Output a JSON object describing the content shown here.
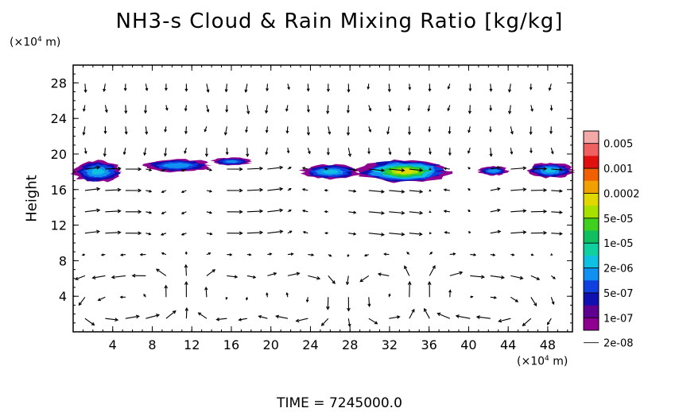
{
  "title": "NH3-s Cloud & Rain Mixing Ratio [kg/kg]",
  "y_unit": "(×10",
  "y_unit_exp": "4",
  "y_unit_tail": " m)",
  "x_unit": "(×10",
  "x_unit_exp": "4",
  "x_unit_tail": " m)",
  "ylabel": "Height",
  "time_label": "TIME  =  7245000.0",
  "chart_data": {
    "type": "heatmap",
    "title": "NH3-s Cloud & Rain Mixing Ratio [kg/kg]",
    "ylabel": "Height",
    "xlim": [
      0,
      50.5
    ],
    "ylim": [
      0,
      30
    ],
    "xticks": [
      4,
      8,
      12,
      16,
      20,
      24,
      28,
      32,
      36,
      40,
      44,
      48
    ],
    "yticks": [
      4,
      8,
      12,
      16,
      20,
      24,
      28
    ],
    "colorbar": {
      "labels": [
        "0.005",
        "0.001",
        "0.0002",
        "5e-05",
        "1e-05",
        "2e-06",
        "5e-07",
        "1e-07",
        "2e-08"
      ],
      "colors": [
        "#f5a8a8",
        "#f06060",
        "#e01010",
        "#f06000",
        "#f0a000",
        "#e0d800",
        "#a8e000",
        "#40d020",
        "#10c060",
        "#10d0a0",
        "#10c0e0",
        "#1090f0",
        "#1040e0",
        "#1010b0",
        "#600090",
        "#900090"
      ]
    },
    "cloud_patches": [
      {
        "x": [
          0,
          5
        ],
        "y": [
          16.8,
          19.2
        ],
        "level": 0.35
      },
      {
        "x": [
          7,
          14
        ],
        "y": [
          18.0,
          19.4
        ],
        "level": 0.3
      },
      {
        "x": [
          14,
          18
        ],
        "y": [
          18.7,
          19.6
        ],
        "level": 0.25
      },
      {
        "x": [
          23,
          29
        ],
        "y": [
          17.2,
          18.8
        ],
        "level": 0.35
      },
      {
        "x": [
          29,
          38
        ],
        "y": [
          16.8,
          19.3
        ],
        "level": 0.75
      },
      {
        "x": [
          41,
          44
        ],
        "y": [
          17.6,
          18.6
        ],
        "level": 0.3
      },
      {
        "x": [
          46,
          50.5
        ],
        "y": [
          17.3,
          19.0
        ],
        "level": 0.35
      }
    ],
    "vector_field": "wind arrows (circulation cells near 3, 12-16, 32, 44)"
  }
}
